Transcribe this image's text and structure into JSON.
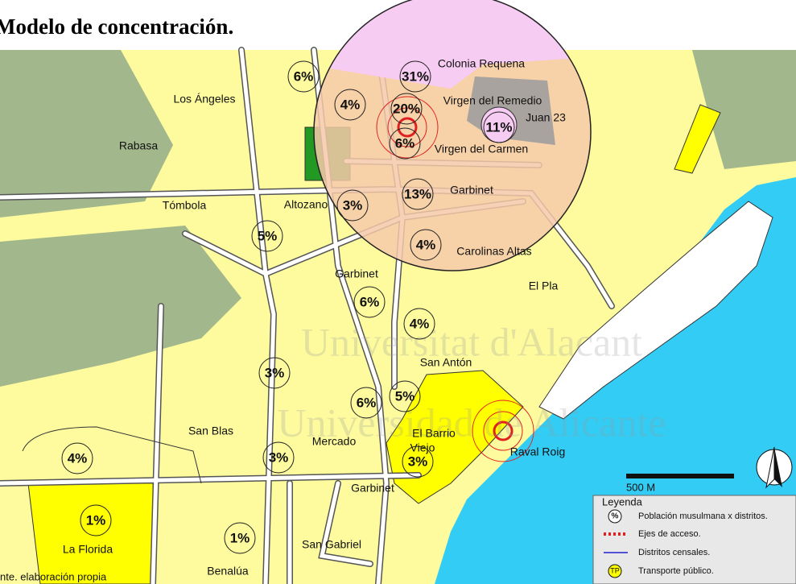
{
  "title": "Modelo de concentración.",
  "districts": [
    "Colonia Requena",
    "Virgen del Remedio",
    "Juan 23",
    "Virgen del Carmen",
    "Garbinet",
    "Los Ángeles",
    "Rabasa",
    "Tómbola",
    "Altozano",
    "Carolinas Altas",
    "Garbinet",
    "El Pla",
    "San Antón",
    "San Blas",
    "Mercado",
    "El Barrio",
    "Viejo",
    "Raval Roig",
    "Garbinet",
    "San Gabriel",
    "La Florida",
    "Benalúa"
  ],
  "percentages": [
    "6%",
    "31%",
    "4%",
    "20%",
    "11%",
    "6%",
    "13%",
    "3%",
    "5%",
    "4%",
    "6%",
    "4%",
    "3%",
    "6%",
    "5%",
    "4%",
    "3%",
    "3%",
    "1%",
    "1%"
  ],
  "watermark": [
    "Universitat d'Alacant",
    "Universidad de Alicante"
  ],
  "scale": "500 M",
  "source": "nte. elaboración propia",
  "legend": {
    "title": "Leyenda",
    "icon_pct": "%",
    "icon_tp": "TP",
    "items": [
      "Población musulmana x distritos.",
      "Ejes de acceso.",
      "Distritos censales.",
      "Transporte público."
    ]
  }
}
